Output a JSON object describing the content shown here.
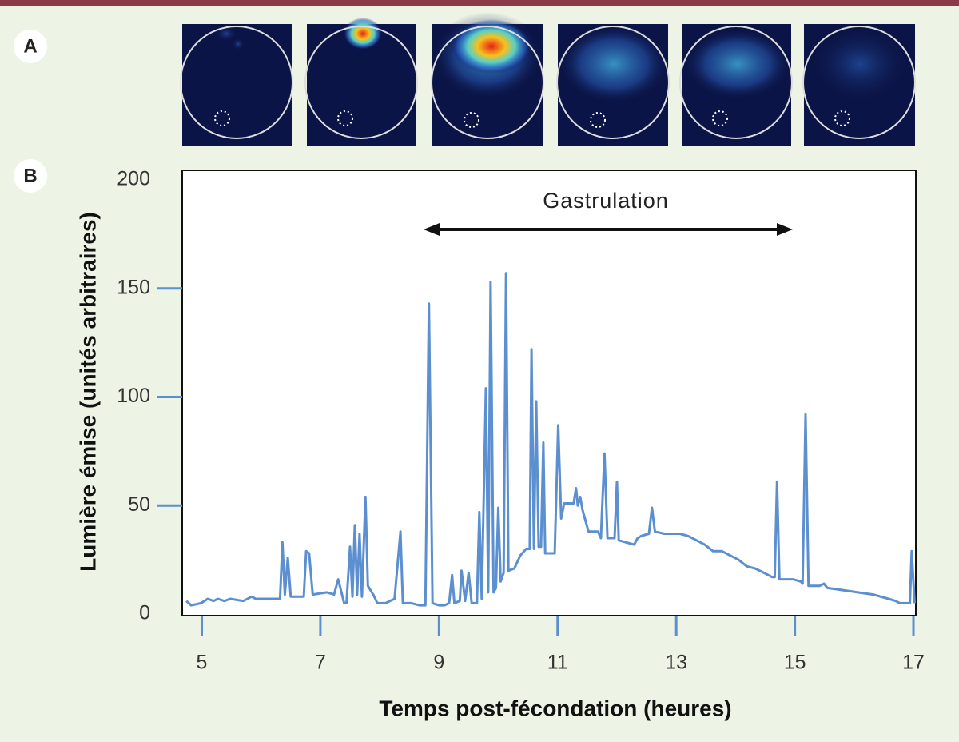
{
  "panels": {
    "a": "A",
    "b": "B"
  },
  "chart_data": {
    "type": "line",
    "x_label": "Temps post-fécondation (heures)",
    "y_label": "Lumière émise (unités arbitraires)",
    "annotation": "Gastrulation",
    "x": [
      4.74,
      4.82,
      4.99,
      5.1,
      5.2,
      5.27,
      5.38,
      5.48,
      5.7,
      5.84,
      5.91,
      6.32,
      6.36,
      6.4,
      6.45,
      6.5,
      6.72,
      6.76,
      6.81,
      6.87,
      7.11,
      7.23,
      7.3,
      7.4,
      7.44,
      7.5,
      7.54,
      7.58,
      7.62,
      7.66,
      7.7,
      7.76,
      7.8,
      7.89,
      7.96,
      8.1,
      8.25,
      8.35,
      8.39,
      8.53,
      8.67,
      8.77,
      8.83,
      8.89,
      9.0,
      9.09,
      9.17,
      9.22,
      9.26,
      9.35,
      9.38,
      9.44,
      9.5,
      9.55,
      9.64,
      9.68,
      9.72,
      9.79,
      9.83,
      9.87,
      9.92,
      9.96,
      10.0,
      10.04,
      10.09,
      10.13,
      10.17,
      10.27,
      10.37,
      10.47,
      10.53,
      10.56,
      10.6,
      10.64,
      10.68,
      10.72,
      10.76,
      10.79,
      10.95,
      11.01,
      11.06,
      11.11,
      11.22,
      11.27,
      11.31,
      11.34,
      11.38,
      11.42,
      11.52,
      11.68,
      11.73,
      11.79,
      11.84,
      11.96,
      12.0,
      12.03,
      12.16,
      12.29,
      12.35,
      12.41,
      12.54,
      12.59,
      12.64,
      12.8,
      13.06,
      13.2,
      13.34,
      13.48,
      13.62,
      13.77,
      13.91,
      14.05,
      14.19,
      14.33,
      14.48,
      14.62,
      14.66,
      14.7,
      14.74,
      14.83,
      14.97,
      15.1,
      15.13,
      15.18,
      15.23,
      15.42,
      15.49,
      15.55,
      15.81,
      16.06,
      16.32,
      16.58,
      16.7,
      16.77,
      16.94,
      16.97,
      17.02
    ],
    "series": [
      {
        "color": "#5b8fd0",
        "values": [
          6,
          4,
          5,
          7,
          6,
          7,
          6,
          7,
          6,
          8,
          7,
          7,
          33,
          9,
          26,
          8,
          8,
          29,
          28,
          9,
          10,
          9,
          16,
          5,
          5,
          31,
          8,
          41,
          9,
          37,
          8,
          54,
          13,
          9,
          5,
          5,
          7,
          38,
          5,
          5,
          4,
          4,
          143,
          5,
          4,
          4,
          5,
          18,
          5,
          6,
          20,
          6,
          19,
          5,
          5,
          47,
          7,
          104,
          10,
          153,
          10,
          12,
          49,
          15,
          19,
          157,
          20,
          21,
          27,
          30,
          30,
          122,
          30,
          98,
          31,
          31,
          79,
          28,
          28,
          87,
          44,
          51,
          51,
          51,
          58,
          50,
          54,
          48,
          38,
          38,
          35,
          74,
          35,
          35,
          61,
          34,
          33,
          32,
          35,
          36,
          37,
          49,
          38,
          37,
          37,
          36,
          34,
          32,
          29,
          29,
          27,
          25,
          22,
          21,
          19,
          17,
          17,
          61,
          16,
          16,
          16,
          15,
          14,
          92,
          13,
          13,
          14,
          12,
          11,
          10,
          9,
          7,
          6,
          5,
          5,
          29,
          5
        ]
      }
    ],
    "xlim": [
      4.67,
      17.04
    ],
    "ylim": [
      0,
      200
    ],
    "xticks": [
      5,
      7,
      9,
      11,
      13,
      15,
      17
    ],
    "yticks": [
      0,
      50,
      100,
      150,
      200
    ],
    "tick_color": "#5b8fd0"
  }
}
